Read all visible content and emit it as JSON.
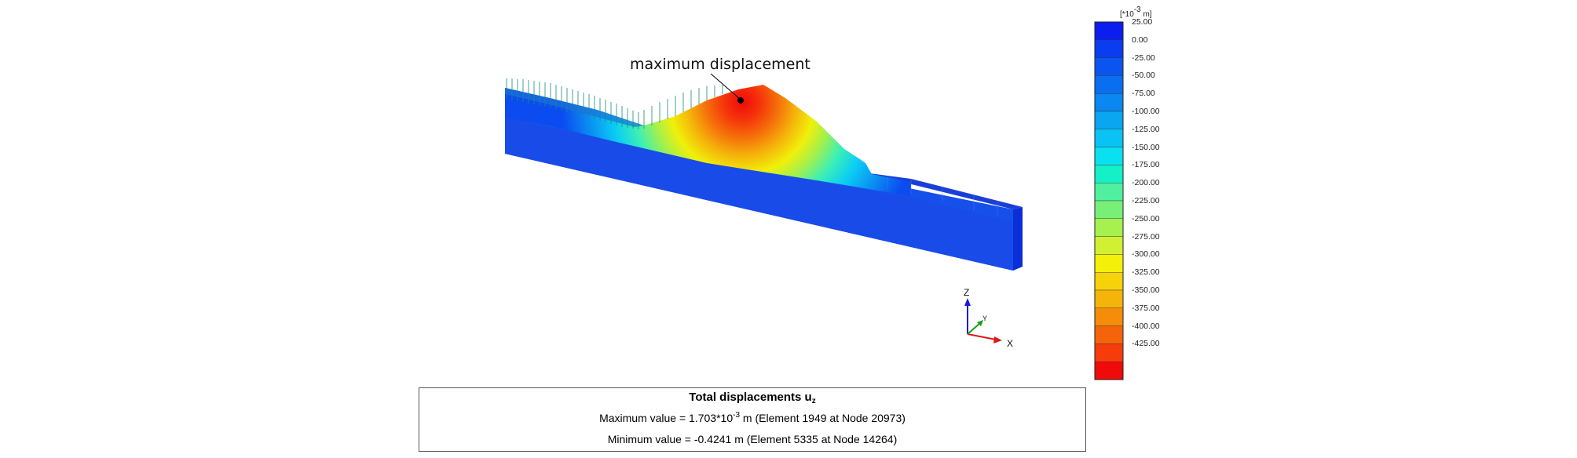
{
  "annotation": {
    "callout": "maximum displacement"
  },
  "legend": {
    "unit_prefix": "[*10",
    "unit_exp": "-3",
    "unit_suffix": " m]",
    "labels": [
      "25.00",
      "0.00",
      "-25.00",
      "-50.00",
      "-75.00",
      "-100.00",
      "-125.00",
      "-150.00",
      "-175.00",
      "-200.00",
      "-225.00",
      "-250.00",
      "-275.00",
      "-300.00",
      "-325.00",
      "-350.00",
      "-375.00",
      "-400.00",
      "-425.00"
    ],
    "colors": [
      "#0a1ef0",
      "#0a3cf0",
      "#0a55f0",
      "#0a6ef0",
      "#0a87f0",
      "#0aa6f0",
      "#0ac3f5",
      "#0ae1f0",
      "#14f0c8",
      "#50f0a0",
      "#78f078",
      "#a6f050",
      "#d2f032",
      "#f5f00a",
      "#f5d20a",
      "#f5b40a",
      "#f58c0a",
      "#f5640a",
      "#f53c0a",
      "#f00a0a"
    ]
  },
  "axes": {
    "z": "Z",
    "y": "Y",
    "x": "X",
    "colors": {
      "z": "#1a1adc",
      "y": "#1a9a1a",
      "x": "#dc1a1a"
    }
  },
  "info": {
    "title": "Total displacements u",
    "title_sub": "z",
    "max_prefix": "Maximum value = 1.703*10",
    "max_exp": "-3",
    "max_suffix": " m (Element 1949 at Node 20973)",
    "min_text": "Minimum value = -0.4241 m (Element 5335 at Node 14264)"
  }
}
